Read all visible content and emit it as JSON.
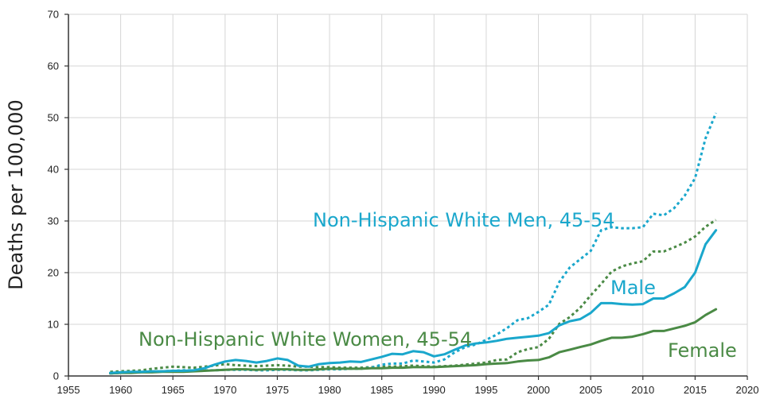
{
  "chart_data": {
    "type": "line",
    "title": "",
    "xlabel": "",
    "ylabel": "Deaths per 100,000",
    "xlim": [
      1955,
      2020
    ],
    "ylim": [
      0,
      70
    ],
    "xticks": [
      1955,
      1960,
      1965,
      1970,
      1975,
      1980,
      1985,
      1990,
      1995,
      2000,
      2005,
      2010,
      2015,
      2020
    ],
    "yticks": [
      0,
      10,
      20,
      30,
      40,
      50,
      60,
      70
    ],
    "grid": true,
    "colors": {
      "male": "#1aa7cc",
      "female": "#4a8a45"
    },
    "x": [
      1959,
      1960,
      1961,
      1962,
      1963,
      1964,
      1965,
      1966,
      1967,
      1968,
      1969,
      1970,
      1971,
      1972,
      1973,
      1974,
      1975,
      1976,
      1977,
      1978,
      1979,
      1980,
      1981,
      1982,
      1983,
      1984,
      1985,
      1986,
      1987,
      1988,
      1989,
      1990,
      1991,
      1992,
      1993,
      1994,
      1995,
      1996,
      1997,
      1998,
      1999,
      2000,
      2001,
      2002,
      2003,
      2004,
      2005,
      2006,
      2007,
      2008,
      2009,
      2010,
      2011,
      2012,
      2013,
      2014,
      2015,
      2016,
      2017
    ],
    "series": [
      {
        "name": "Male",
        "style": "solid",
        "color": "#1aa7cc",
        "values": [
          0.6,
          0.7,
          0.8,
          0.8,
          0.9,
          0.9,
          1.0,
          1.0,
          1.1,
          1.5,
          2.2,
          2.8,
          3.1,
          2.9,
          2.6,
          2.9,
          3.4,
          3.1,
          2.0,
          1.8,
          2.3,
          2.5,
          2.6,
          2.8,
          2.7,
          3.2,
          3.7,
          4.3,
          4.2,
          4.8,
          4.6,
          3.8,
          4.2,
          5.1,
          5.9,
          6.3,
          6.5,
          6.8,
          7.2,
          7.4,
          7.6,
          7.8,
          8.3,
          9.8,
          10.6,
          11.0,
          12.2,
          14.1,
          14.1,
          13.9,
          13.8,
          13.9,
          15.0,
          15.0,
          16.0,
          17.2,
          20.0,
          25.5,
          28.2
        ]
      },
      {
        "name": "Female",
        "style": "solid",
        "color": "#4a8a45",
        "values": [
          0.5,
          0.6,
          0.6,
          0.7,
          0.7,
          0.8,
          0.8,
          0.8,
          0.9,
          1.0,
          1.1,
          1.2,
          1.3,
          1.3,
          1.2,
          1.3,
          1.3,
          1.3,
          1.2,
          1.2,
          1.3,
          1.4,
          1.4,
          1.4,
          1.4,
          1.5,
          1.5,
          1.6,
          1.6,
          1.7,
          1.7,
          1.7,
          1.8,
          1.9,
          2.0,
          2.1,
          2.3,
          2.4,
          2.5,
          2.8,
          3.0,
          3.1,
          3.6,
          4.6,
          5.1,
          5.6,
          6.1,
          6.8,
          7.4,
          7.4,
          7.6,
          8.1,
          8.7,
          8.7,
          9.2,
          9.7,
          10.4,
          11.8,
          12.9
        ]
      },
      {
        "name": "Non-Hispanic White Men, 45-54",
        "style": "dotted",
        "color": "#1aa7cc",
        "values": [
          0.5,
          0.6,
          0.7,
          0.8,
          0.8,
          0.9,
          1.0,
          1.1,
          1.1,
          1.1,
          1.1,
          1.2,
          1.2,
          1.2,
          1.1,
          1.1,
          1.2,
          1.2,
          1.1,
          1.1,
          1.2,
          1.3,
          1.3,
          1.4,
          1.4,
          1.6,
          2.2,
          2.4,
          2.4,
          3.0,
          2.8,
          2.6,
          3.2,
          4.6,
          5.6,
          6.1,
          7.0,
          8.0,
          9.3,
          10.8,
          11.2,
          12.4,
          13.8,
          18.2,
          21.0,
          22.6,
          24.2,
          28.2,
          28.8,
          28.6,
          28.6,
          28.8,
          31.4,
          31.1,
          32.5,
          34.9,
          38.3,
          46.0,
          50.9
        ]
      },
      {
        "name": "Non-Hispanic White Women, 45-54",
        "style": "dotted",
        "color": "#4a8a45",
        "values": [
          0.8,
          0.9,
          1.0,
          1.1,
          1.4,
          1.6,
          1.8,
          1.7,
          1.6,
          1.8,
          2.0,
          2.3,
          2.1,
          2.0,
          1.9,
          2.0,
          2.1,
          2.0,
          1.8,
          1.8,
          1.7,
          1.7,
          1.6,
          1.6,
          1.6,
          1.7,
          1.8,
          1.8,
          1.9,
          2.0,
          1.9,
          1.8,
          1.9,
          2.0,
          2.2,
          2.4,
          2.6,
          3.1,
          3.2,
          4.6,
          5.2,
          5.6,
          7.2,
          10.1,
          11.4,
          13.2,
          15.6,
          17.8,
          20.2,
          21.2,
          21.8,
          22.2,
          24.1,
          24.1,
          24.9,
          25.8,
          27.0,
          28.9,
          30.2
        ]
      }
    ],
    "annotations": [
      {
        "text": "Non-Hispanic White Men, 45-54",
        "color": "#1aa7cc"
      },
      {
        "text": "Male",
        "color": "#1aa7cc"
      },
      {
        "text": "Non-Hispanic White Women, 45-54",
        "color": "#4a8a45"
      },
      {
        "text": "Female",
        "color": "#4a8a45"
      }
    ]
  }
}
